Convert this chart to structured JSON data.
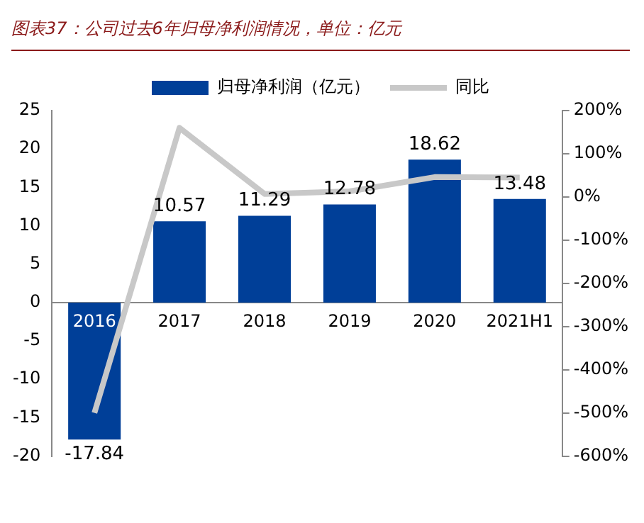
{
  "chart_data": {
    "type": "bar",
    "title": "图表37：公司过去6年归母净利润情况，单位：亿元",
    "categories": [
      "2016",
      "2017",
      "2018",
      "2019",
      "2020",
      "2021H1"
    ],
    "series": [
      {
        "name": "归母净利润（亿元）",
        "color": "#003f98",
        "values": [
          -17.84,
          10.57,
          11.29,
          12.78,
          18.62,
          13.48
        ],
        "value_labels": [
          "-17.84",
          "10.57",
          "11.29",
          "12.78",
          "18.62",
          "13.48"
        ]
      },
      {
        "name": "同比",
        "type": "line",
        "axis": "y2",
        "color": "#c8c8c8",
        "values": [
          -500,
          160,
          7,
          13,
          46,
          45
        ]
      }
    ],
    "ylim": [
      -20,
      25
    ],
    "yticks": [
      -20,
      -15,
      -10,
      -5,
      0,
      5,
      10,
      15,
      20,
      25
    ],
    "y2lim": [
      -600,
      200
    ],
    "y2ticks": [
      {
        "value": -600,
        "label": "-600%"
      },
      {
        "value": -500,
        "label": "-500%"
      },
      {
        "value": -400,
        "label": "-400%"
      },
      {
        "value": -300,
        "label": "-300%"
      },
      {
        "value": -200,
        "label": "-200%"
      },
      {
        "value": -100,
        "label": "-100%"
      },
      {
        "value": 0,
        "label": "0%"
      },
      {
        "value": 100,
        "label": "100%"
      },
      {
        "value": 200,
        "label": "200%"
      }
    ],
    "grid": false,
    "legend": "top",
    "marker": "none",
    "line_style": "solid"
  }
}
